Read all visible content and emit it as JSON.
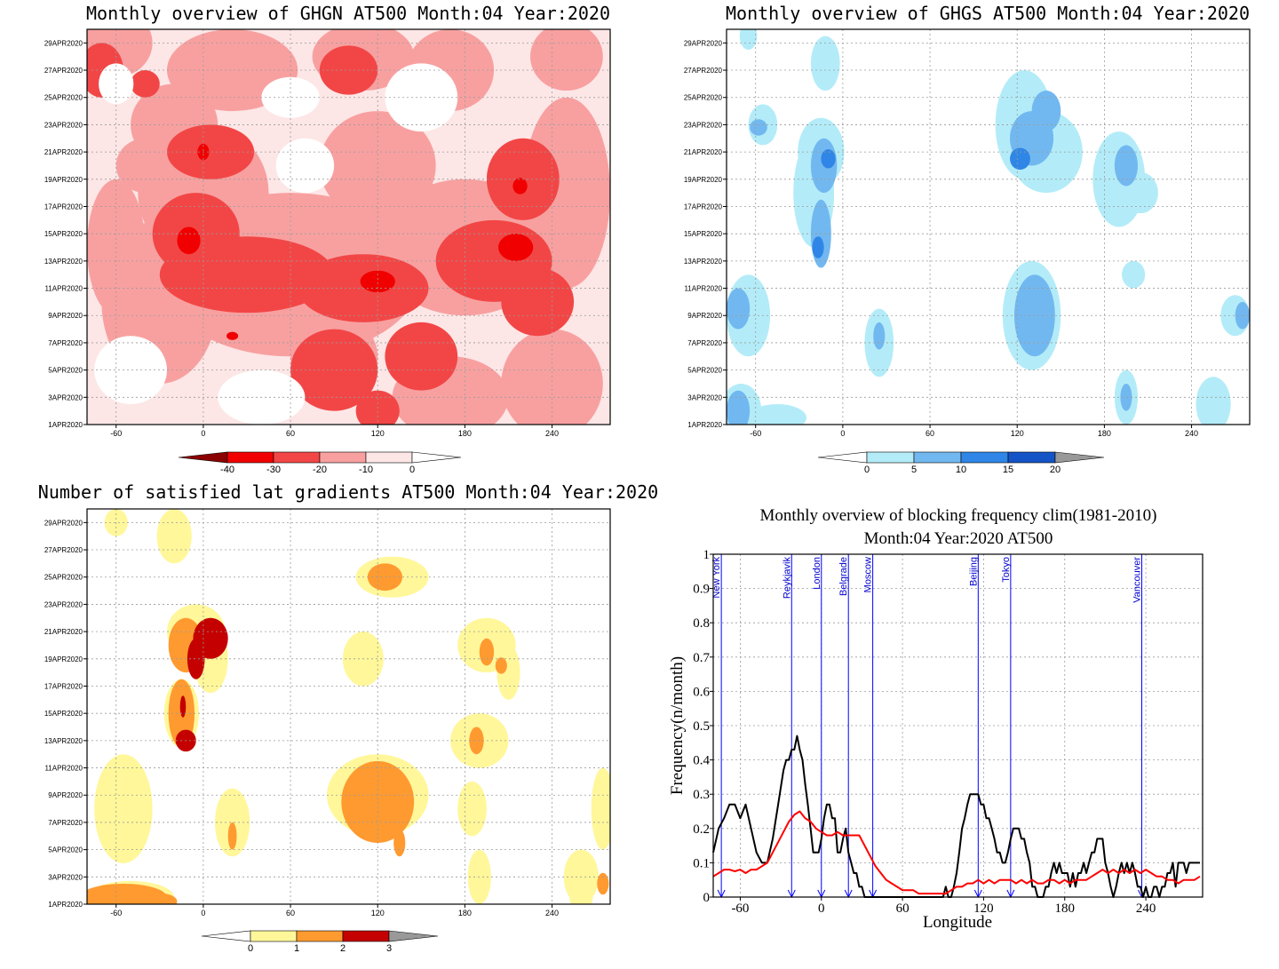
{
  "colors": {
    "ghgn": [
      "#8b0000",
      "#f00000",
      "#f24646",
      "#f8a0a0",
      "#fde6e6",
      "#ffffff"
    ],
    "ghgs": [
      "#ffffff",
      "#b3ecf8",
      "#72b8f0",
      "#2f86e6",
      "#1554c6",
      "#999999"
    ],
    "gradient": [
      "#ffffff",
      "#fff79a",
      "#ff9a30",
      "#c40000",
      "#999999"
    ],
    "clim_line": "#ff0000",
    "freq_line": "#000000",
    "city_lines": "#0000ff"
  },
  "panels": {
    "ghgn": {
      "title": "Monthly overview of GHGN AT500 Month:04 Year:2020",
      "colorbar_ticks": [
        "-40",
        "-30",
        "-20",
        "-10",
        "0"
      ]
    },
    "ghgs": {
      "title": "Monthly overview of GHGS AT500 Month:04 Year:2020",
      "colorbar_ticks": [
        "0",
        "5",
        "10",
        "15",
        "20"
      ]
    },
    "gradient": {
      "title": "Number of satisfied lat gradients AT500 Month:04 Year:2020",
      "colorbar_ticks": [
        "0",
        "1",
        "2",
        "3"
      ]
    }
  },
  "map_axes": {
    "y_ticks": [
      "1APR2020",
      "3APR2020",
      "5APR2020",
      "7APR2020",
      "9APR2020",
      "11APR2020",
      "13APR2020",
      "15APR2020",
      "17APR2020",
      "19APR2020",
      "21APR2020",
      "23APR2020",
      "25APR2020",
      "27APR2020",
      "29APR2020"
    ],
    "x_ticks": [
      "-60",
      "0",
      "60",
      "120",
      "180",
      "240"
    ],
    "x_range": [
      -80,
      280
    ],
    "y_range": [
      1,
      30
    ]
  },
  "chart_data": {
    "type": "line",
    "title_line1": "Monthly overview of blocking frequency clim(1981-2010)",
    "title_line2": "Month:04 Year:2020  AT500",
    "xlabel": "Longitude",
    "ylabel": "Frequency(n/month)",
    "xlim": [
      -80,
      282
    ],
    "ylim": [
      0,
      1
    ],
    "x_ticks": [
      "-60",
      "0",
      "60",
      "120",
      "180",
      "240"
    ],
    "y_ticks": [
      "0",
      "0.1",
      "0.2",
      "0.3",
      "0.4",
      "0.5",
      "0.6",
      "0.7",
      "0.8",
      "0.9",
      "1"
    ],
    "cities": [
      {
        "name": "New York",
        "lon": -74
      },
      {
        "name": "Reykjavik",
        "lon": -22
      },
      {
        "name": "London",
        "lon": 0
      },
      {
        "name": "Belgrade",
        "lon": 20
      },
      {
        "name": "Moscow",
        "lon": 38
      },
      {
        "name": "Beijing",
        "lon": 116
      },
      {
        "name": "Tokyo",
        "lon": 140
      },
      {
        "name": "Vancouver",
        "lon": 237
      }
    ],
    "series": [
      {
        "x": [
          -80,
          -76,
          -72,
          -68,
          -64,
          -60,
          -56,
          -52,
          -48,
          -44,
          -40,
          -36,
          -32,
          -28,
          -26,
          -24,
          -22,
          -20,
          -18,
          -16,
          -14,
          -12,
          -10,
          -8,
          -6,
          -4,
          -2,
          0,
          2,
          4,
          6,
          8,
          10,
          12,
          14,
          16,
          18,
          20,
          22,
          24,
          26,
          28,
          30,
          32,
          34,
          36,
          38,
          42,
          46,
          50,
          54,
          58,
          62,
          66,
          70,
          74,
          78,
          82,
          86,
          90,
          92,
          94,
          96,
          98,
          100,
          102,
          104,
          106,
          108,
          110,
          112,
          114,
          116,
          118,
          120,
          122,
          124,
          126,
          128,
          130,
          132,
          134,
          136,
          138,
          140,
          142,
          144,
          146,
          148,
          150,
          152,
          154,
          156,
          158,
          160,
          162,
          164,
          166,
          168,
          170,
          172,
          174,
          176,
          178,
          180,
          182,
          184,
          186,
          188,
          190,
          192,
          194,
          196,
          198,
          200,
          202,
          204,
          206,
          208,
          210,
          212,
          214,
          216,
          218,
          220,
          222,
          224,
          226,
          228,
          230,
          232,
          234,
          236,
          238,
          240,
          242,
          244,
          246,
          248,
          250,
          252,
          254,
          256,
          258,
          260,
          262,
          264,
          266,
          268,
          270,
          272,
          274,
          276,
          278,
          280
        ],
        "y": [
          0.13,
          0.2,
          0.23,
          0.27,
          0.27,
          0.23,
          0.27,
          0.2,
          0.13,
          0.1,
          0.1,
          0.17,
          0.27,
          0.37,
          0.4,
          0.4,
          0.43,
          0.43,
          0.47,
          0.43,
          0.4,
          0.33,
          0.27,
          0.2,
          0.13,
          0.13,
          0.13,
          0.17,
          0.23,
          0.27,
          0.27,
          0.23,
          0.23,
          0.13,
          0.13,
          0.17,
          0.2,
          0.13,
          0.1,
          0.07,
          0.07,
          0.03,
          0.03,
          0.0,
          0.0,
          0.0,
          0.0,
          0.0,
          0.0,
          0.0,
          0.0,
          0.0,
          0.0,
          0.0,
          0.0,
          0.0,
          0.0,
          0.0,
          0.0,
          0.0,
          0.03,
          0.0,
          0.0,
          0.03,
          0.07,
          0.13,
          0.2,
          0.23,
          0.27,
          0.3,
          0.3,
          0.3,
          0.3,
          0.27,
          0.27,
          0.23,
          0.23,
          0.2,
          0.17,
          0.13,
          0.13,
          0.1,
          0.1,
          0.13,
          0.17,
          0.2,
          0.2,
          0.2,
          0.17,
          0.17,
          0.13,
          0.1,
          0.03,
          0.03,
          0.0,
          0.0,
          0.0,
          0.03,
          0.03,
          0.07,
          0.1,
          0.07,
          0.1,
          0.07,
          0.07,
          0.07,
          0.03,
          0.07,
          0.03,
          0.07,
          0.07,
          0.1,
          0.07,
          0.1,
          0.13,
          0.13,
          0.17,
          0.17,
          0.17,
          0.1,
          0.07,
          0.03,
          0.0,
          0.03,
          0.07,
          0.1,
          0.07,
          0.1,
          0.07,
          0.1,
          0.07,
          0.03,
          0.03,
          0.0,
          0.03,
          0.0,
          0.0,
          0.03,
          0.03,
          0.0,
          0.03,
          0.03,
          0.07,
          0.07,
          0.1,
          0.03,
          0.1,
          0.1,
          0.1,
          0.07,
          0.1,
          0.1,
          0.1,
          0.1,
          0.1
        ]
      },
      {
        "x": [
          -80,
          -76,
          -72,
          -68,
          -64,
          -60,
          -56,
          -52,
          -48,
          -44,
          -40,
          -36,
          -32,
          -28,
          -24,
          -20,
          -16,
          -12,
          -8,
          -4,
          0,
          4,
          8,
          12,
          16,
          20,
          24,
          28,
          32,
          36,
          40,
          44,
          48,
          52,
          56,
          60,
          64,
          68,
          72,
          76,
          80,
          84,
          88,
          92,
          96,
          100,
          104,
          108,
          112,
          116,
          120,
          124,
          128,
          132,
          136,
          140,
          144,
          148,
          152,
          156,
          160,
          164,
          168,
          172,
          176,
          180,
          184,
          188,
          192,
          196,
          200,
          204,
          208,
          212,
          216,
          220,
          224,
          228,
          232,
          236,
          240,
          244,
          248,
          252,
          256,
          260,
          264,
          268,
          272,
          276,
          280
        ],
        "y": [
          0.06,
          0.07,
          0.08,
          0.08,
          0.075,
          0.08,
          0.07,
          0.08,
          0.08,
          0.09,
          0.1,
          0.13,
          0.16,
          0.19,
          0.22,
          0.24,
          0.25,
          0.23,
          0.22,
          0.2,
          0.19,
          0.18,
          0.18,
          0.19,
          0.18,
          0.18,
          0.18,
          0.18,
          0.15,
          0.12,
          0.09,
          0.07,
          0.05,
          0.04,
          0.03,
          0.02,
          0.02,
          0.02,
          0.01,
          0.01,
          0.01,
          0.01,
          0.01,
          0.01,
          0.02,
          0.03,
          0.03,
          0.04,
          0.04,
          0.05,
          0.04,
          0.05,
          0.04,
          0.05,
          0.05,
          0.05,
          0.04,
          0.05,
          0.04,
          0.05,
          0.04,
          0.04,
          0.05,
          0.05,
          0.04,
          0.05,
          0.04,
          0.05,
          0.05,
          0.05,
          0.06,
          0.07,
          0.08,
          0.07,
          0.08,
          0.07,
          0.08,
          0.07,
          0.08,
          0.07,
          0.08,
          0.07,
          0.06,
          0.06,
          0.05,
          0.05,
          0.04,
          0.05,
          0.05,
          0.05,
          0.06
        ]
      }
    ]
  }
}
